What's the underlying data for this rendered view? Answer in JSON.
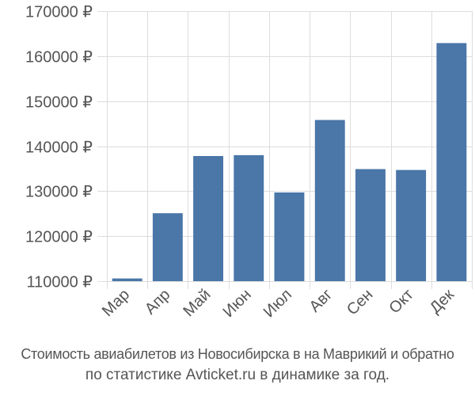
{
  "chart_data": {
    "type": "bar",
    "categories": [
      "Мар",
      "Апр",
      "Май",
      "Июн",
      "Июл",
      "Авг",
      "Сен",
      "Окт",
      "Дек"
    ],
    "values": [
      110600,
      125100,
      137800,
      138000,
      129700,
      145800,
      134900,
      134700,
      162900
    ],
    "yticks": [
      110000,
      120000,
      130000,
      140000,
      150000,
      160000,
      170000
    ],
    "ytick_labels": [
      "110000 ₽",
      "120000 ₽",
      "130000 ₽",
      "140000 ₽",
      "150000 ₽",
      "160000 ₽",
      "170000 ₽"
    ],
    "ylim": [
      110000,
      170000
    ],
    "bar_color": "#4a76a8",
    "grid": true,
    "title": "",
    "xlabel": "",
    "ylabel": ""
  },
  "caption": {
    "line1": "Стоимость авиабилетов из Новосибирска в на Маврикий и обратно",
    "line2": "по статистике Avticket.ru в динамике за год."
  }
}
